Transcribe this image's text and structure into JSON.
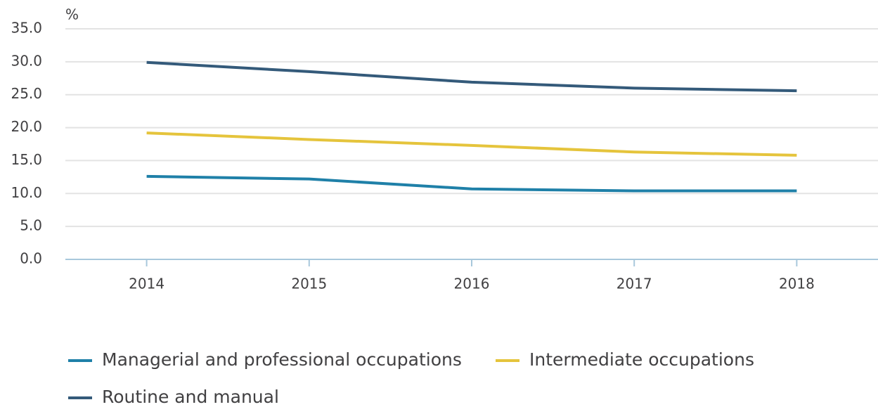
{
  "chart_data": {
    "type": "line",
    "y_label": "%",
    "categories": [
      "2014",
      "2015",
      "2016",
      "2017",
      "2018"
    ],
    "series": [
      {
        "name": "Managerial and professional occupations",
        "color": "#1f80a8",
        "values": [
          12.6,
          12.2,
          10.7,
          10.4,
          10.4
        ]
      },
      {
        "name": "Intermediate occupations",
        "color": "#e5c43c",
        "values": [
          19.2,
          18.2,
          17.3,
          16.3,
          15.8
        ]
      },
      {
        "name": "Routine and manual",
        "color": "#345a7a",
        "values": [
          29.9,
          28.5,
          26.9,
          26.0,
          25.6
        ]
      }
    ],
    "ylim": [
      0,
      35
    ],
    "yticks": [
      {
        "value": 0,
        "label": "0.0"
      },
      {
        "value": 5,
        "label": "5.0"
      },
      {
        "value": 10,
        "label": "10.0"
      },
      {
        "value": 15,
        "label": "15.0"
      },
      {
        "value": 20,
        "label": "20.0"
      },
      {
        "value": 25,
        "label": "25.0"
      },
      {
        "value": 30,
        "label": "30.0"
      },
      {
        "value": 35,
        "label": "35.0"
      }
    ],
    "grid": true
  }
}
